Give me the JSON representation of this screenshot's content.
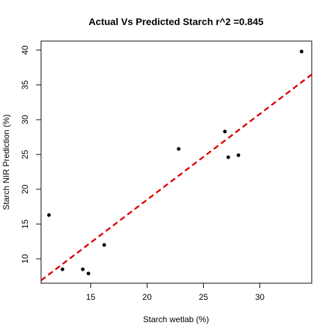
{
  "chart_data": {
    "type": "scatter",
    "title": "Actual Vs Predicted Starch r^2 =0.845",
    "xlabel": "Starch wetlab (%)",
    "ylabel": "Starch NIR Prediction (%)",
    "xlim": [
      10.6,
      34.6
    ],
    "ylim": [
      6.5,
      41.3
    ],
    "xticks": [
      15,
      20,
      25,
      30
    ],
    "yticks": [
      10,
      15,
      20,
      25,
      30,
      35,
      40
    ],
    "grid": false,
    "points": [
      {
        "x": 11.3,
        "y": 16.3
      },
      {
        "x": 12.5,
        "y": 8.5
      },
      {
        "x": 14.3,
        "y": 8.5
      },
      {
        "x": 14.8,
        "y": 7.9
      },
      {
        "x": 16.2,
        "y": 12.0
      },
      {
        "x": 22.8,
        "y": 25.8
      },
      {
        "x": 26.9,
        "y": 28.3
      },
      {
        "x": 27.2,
        "y": 24.6
      },
      {
        "x": 28.1,
        "y": 24.9
      },
      {
        "x": 33.7,
        "y": 39.8
      }
    ],
    "fit_line": {
      "x": [
        10.6,
        34.6
      ],
      "y": [
        6.9,
        36.5
      ],
      "color": "#dd0000",
      "style": "dashed"
    },
    "point_color": "#000000"
  }
}
